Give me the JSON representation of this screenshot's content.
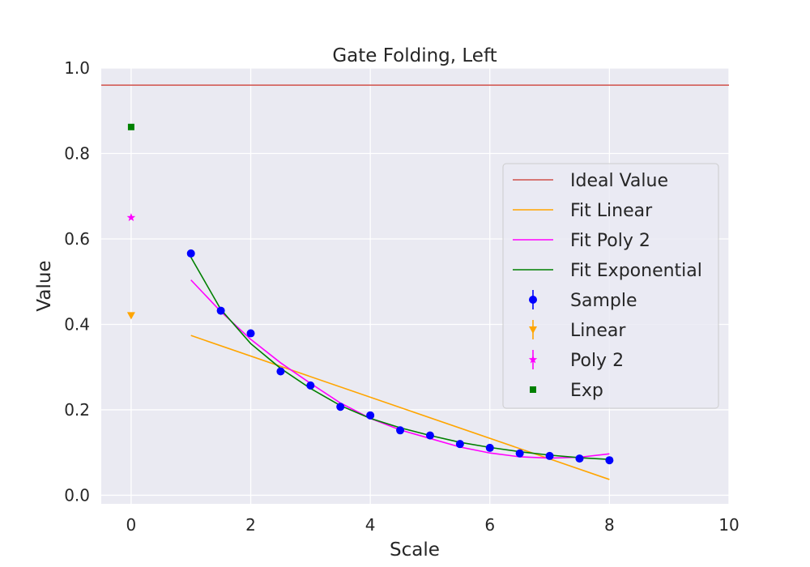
{
  "chart_data": {
    "type": "scatter",
    "title": "Gate Folding, Left",
    "xlabel": "Scale",
    "ylabel": "Value",
    "xlim": [
      -0.5,
      10
    ],
    "ylim": [
      -0.02,
      1.0
    ],
    "xticks": [
      0,
      2,
      4,
      6,
      8,
      10
    ],
    "xtick_labels": [
      "0",
      "2",
      "4",
      "6",
      "8",
      "10"
    ],
    "yticks": [
      0.0,
      0.2,
      0.4,
      0.6,
      0.8,
      1.0
    ],
    "ytick_labels": [
      "0.0",
      "0.2",
      "0.4",
      "0.6",
      "0.8",
      "1.0"
    ],
    "grid": true,
    "legend_position": "right",
    "ideal_value": {
      "name": "Ideal Value",
      "y": 0.96,
      "color": "#d0504a"
    },
    "fit_lines": [
      {
        "name": "Fit Linear",
        "color": "#ffa500",
        "x": [
          1,
          8
        ],
        "y": [
          0.374,
          0.037
        ]
      },
      {
        "name": "Fit Poly 2",
        "color": "#ff00ff",
        "x": [
          1,
          1.5,
          2,
          2.5,
          3,
          3.5,
          4,
          4.5,
          5,
          5.5,
          6,
          6.5,
          7,
          7.5,
          8
        ],
        "y": [
          0.504,
          0.43,
          0.365,
          0.31,
          0.262,
          0.216,
          0.18,
          0.153,
          0.133,
          0.113,
          0.099,
          0.09,
          0.087,
          0.089,
          0.097
        ]
      },
      {
        "name": "Fit Exponential",
        "color": "#008000",
        "x": [
          1,
          1.5,
          2,
          2.5,
          3,
          3.5,
          4,
          4.5,
          5,
          5.5,
          6,
          6.5,
          7,
          7.5,
          8
        ],
        "y": [
          0.557,
          0.435,
          0.355,
          0.297,
          0.25,
          0.21,
          0.18,
          0.158,
          0.14,
          0.124,
          0.112,
          0.102,
          0.094,
          0.088,
          0.084
        ]
      }
    ],
    "sample": {
      "name": "Sample",
      "color": "#0000ff",
      "marker": "circle",
      "x": [
        1,
        1.5,
        2,
        2.5,
        3,
        3.5,
        4,
        4.5,
        5,
        5.5,
        6,
        6.5,
        7,
        7.5,
        8
      ],
      "y": [
        0.566,
        0.432,
        0.379,
        0.29,
        0.257,
        0.207,
        0.187,
        0.152,
        0.14,
        0.12,
        0.111,
        0.098,
        0.092,
        0.086,
        0.082
      ]
    },
    "extrapolations": [
      {
        "name": "Linear",
        "color": "#ffa500",
        "marker": "triangle-down",
        "x": 0,
        "y": 0.421
      },
      {
        "name": "Poly 2",
        "color": "#ff00ff",
        "marker": "star",
        "x": 0,
        "y": 0.65
      },
      {
        "name": "Exp",
        "color": "#008000",
        "marker": "square",
        "x": 0,
        "y": 0.862
      }
    ]
  }
}
